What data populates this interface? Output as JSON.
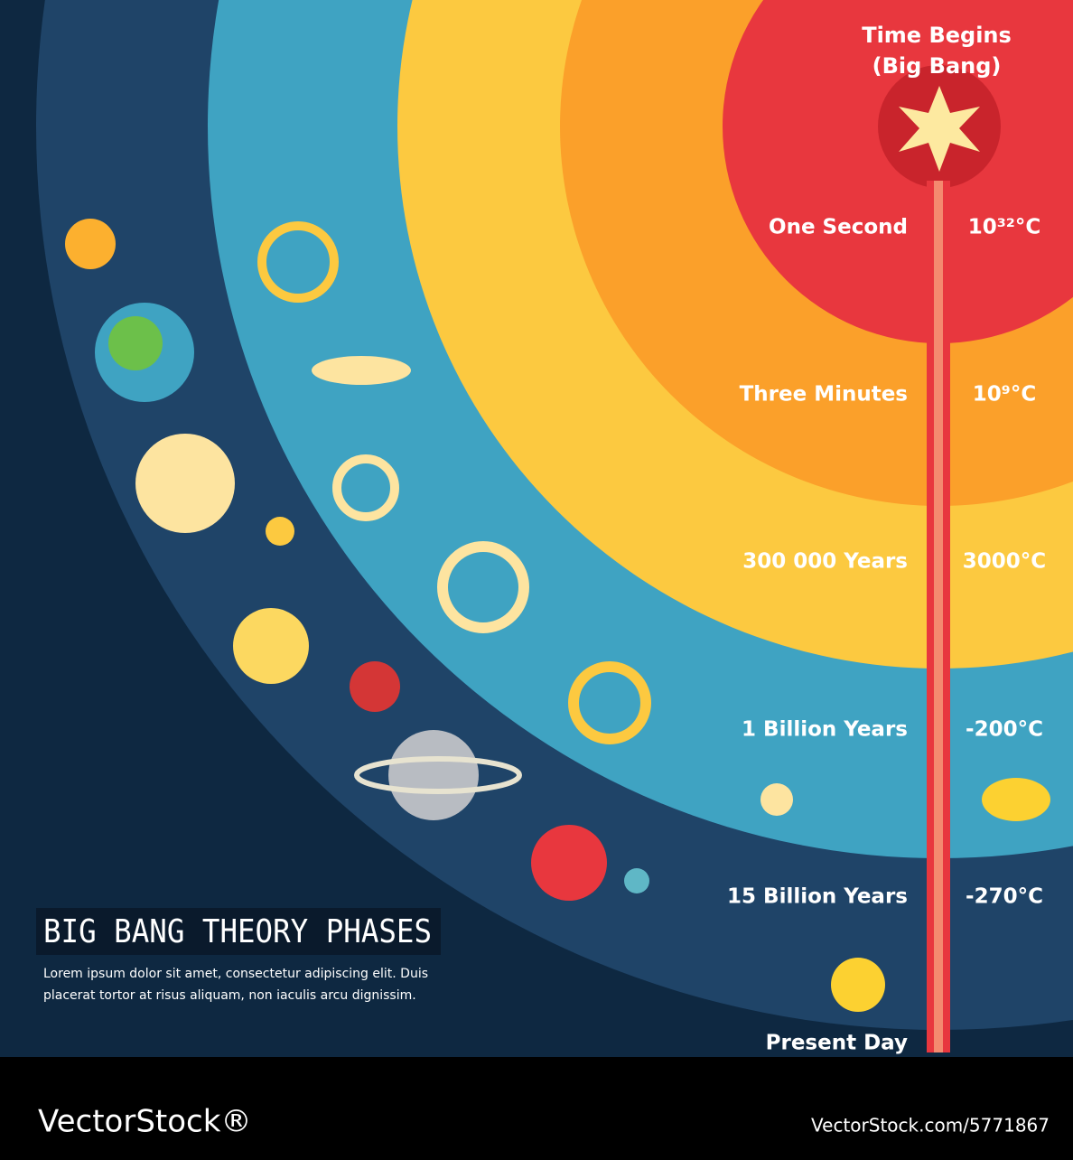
{
  "header": {
    "title": "BIG BANG THEORY PHASES",
    "body": [
      "Lorem ipsum dolor sit amet, consectetur adipiscing elit. Duis",
      "placerat tortor at risus aliquam, non iaculis arcu dignissim."
    ]
  },
  "start": [
    "Time Begins",
    "(Big Bang)"
  ],
  "phases": [
    {
      "label": "One Second",
      "temperature": "10³²°C"
    },
    {
      "label": "Three Minutes",
      "temperature": "10⁹°C"
    },
    {
      "label": "300 000 Years",
      "temperature": "3000°C"
    },
    {
      "label": "1 Billion Years",
      "temperature": "-200°C"
    },
    {
      "label": "15 Billion Years",
      "temperature": "-270°C"
    }
  ],
  "end": "Present Day",
  "footer": {
    "brand": "VectorStock®",
    "id": "VectorStock.com/5771867"
  }
}
